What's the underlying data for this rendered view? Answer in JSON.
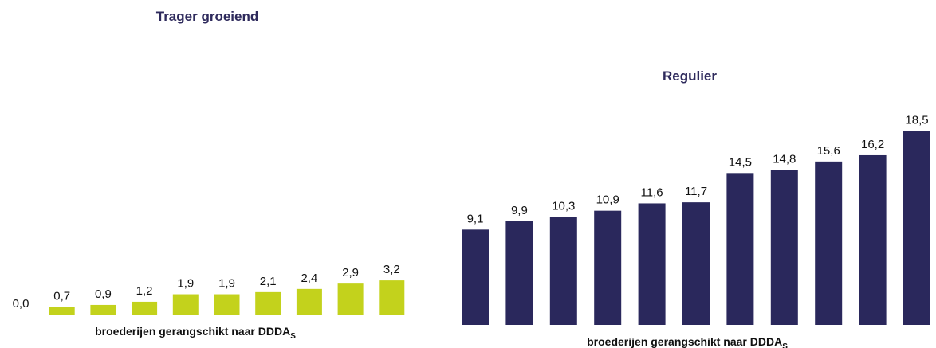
{
  "chart_data": [
    {
      "type": "bar",
      "title": "Trager groeiend",
      "x_label": "broederijen gerangschikt naar DDDA",
      "x_label_sub": "S",
      "values": [
        0.0,
        0.7,
        0.9,
        1.2,
        1.9,
        1.9,
        2.1,
        2.4,
        2.9,
        3.2
      ],
      "value_labels": [
        "0,0",
        "0,7",
        "0,9",
        "1,2",
        "1,9",
        "1,9",
        "2,1",
        "2,4",
        "2,9",
        "3,2"
      ],
      "color": "#c3d21c"
    },
    {
      "type": "bar",
      "title": "Regulier",
      "x_label": "broederijen  gerangschikt naar DDDA",
      "x_label_sub": "S",
      "values": [
        9.1,
        9.9,
        10.3,
        10.9,
        11.6,
        11.7,
        14.5,
        14.8,
        15.6,
        16.2,
        18.5
      ],
      "value_labels": [
        "9,1",
        "9,9",
        "10,3",
        "10,9",
        "11,6",
        "11,7",
        "14,5",
        "14,8",
        "15,6",
        "16,2",
        "18,5"
      ],
      "color": "#2a285c"
    }
  ]
}
